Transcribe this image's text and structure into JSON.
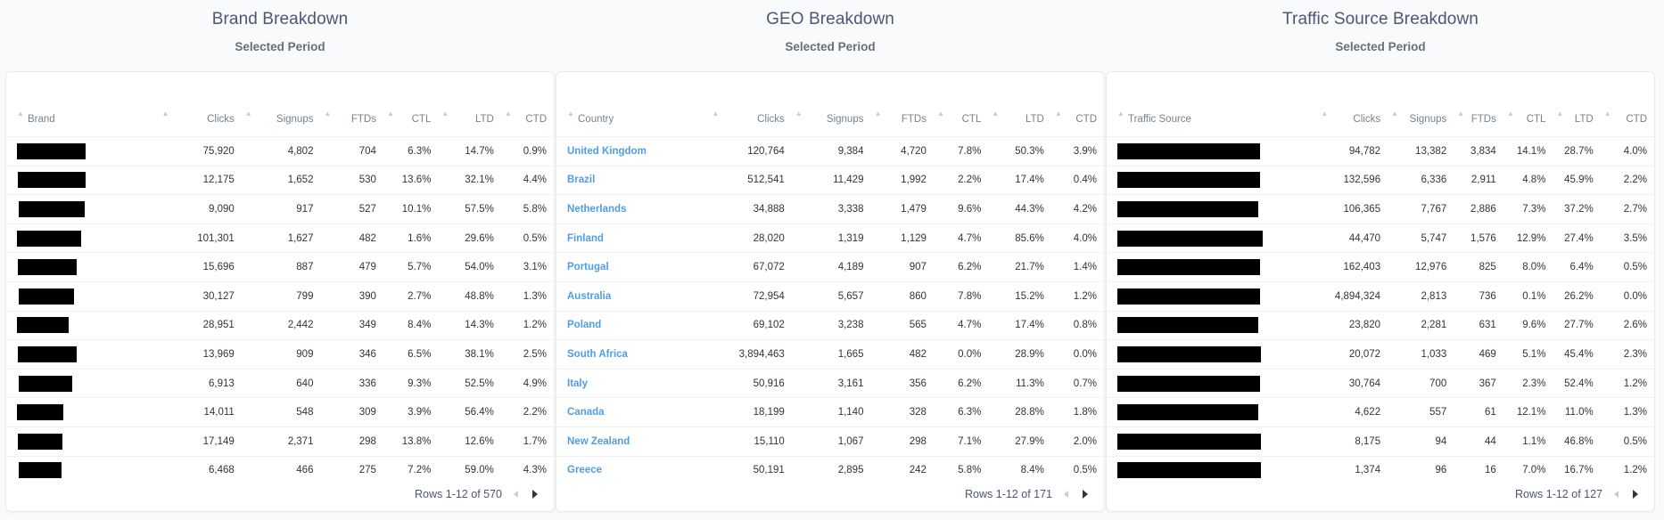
{
  "panels": [
    {
      "title": "Brand Breakdown",
      "subtitle": "Selected Period",
      "columns": [
        "Brand",
        "Clicks",
        "Signups",
        "FTDs",
        "CTL",
        "LTD",
        "CTD"
      ],
      "rows": [
        [
          "",
          "75,920",
          "4,802",
          "704",
          "6.3%",
          "14.7%",
          "0.9%"
        ],
        [
          "",
          "12,175",
          "1,652",
          "530",
          "13.6%",
          "32.1%",
          "4.4%"
        ],
        [
          "",
          "9,090",
          "917",
          "527",
          "10.1%",
          "57.5%",
          "5.8%"
        ],
        [
          "",
          "101,301",
          "1,627",
          "482",
          "1.6%",
          "29.6%",
          "0.5%"
        ],
        [
          "",
          "15,696",
          "887",
          "479",
          "5.7%",
          "54.0%",
          "3.1%"
        ],
        [
          "",
          "30,127",
          "799",
          "390",
          "2.7%",
          "48.8%",
          "1.3%"
        ],
        [
          "",
          "28,951",
          "2,442",
          "349",
          "8.4%",
          "14.3%",
          "1.2%"
        ],
        [
          "",
          "13,969",
          "909",
          "346",
          "6.5%",
          "38.1%",
          "2.5%"
        ],
        [
          "",
          "6,913",
          "640",
          "336",
          "9.3%",
          "52.5%",
          "4.9%"
        ],
        [
          "",
          "14,011",
          "548",
          "309",
          "3.9%",
          "56.4%",
          "2.2%"
        ],
        [
          "",
          "17,149",
          "2,371",
          "298",
          "13.8%",
          "12.6%",
          "1.7%"
        ],
        [
          "",
          "6,468",
          "466",
          "275",
          "7.2%",
          "59.0%",
          "4.3%"
        ]
      ],
      "pagination": "Rows 1-12 of 570"
    },
    {
      "title": "GEO Breakdown",
      "subtitle": "Selected Period",
      "columns": [
        "Country",
        "Clicks",
        "Signups",
        "FTDs",
        "CTL",
        "LTD",
        "CTD"
      ],
      "rows": [
        [
          "United Kingdom",
          "120,764",
          "9,384",
          "4,720",
          "7.8%",
          "50.3%",
          "3.9%"
        ],
        [
          "Brazil",
          "512,541",
          "11,429",
          "1,992",
          "2.2%",
          "17.4%",
          "0.4%"
        ],
        [
          "Netherlands",
          "34,888",
          "3,338",
          "1,479",
          "9.6%",
          "44.3%",
          "4.2%"
        ],
        [
          "Finland",
          "28,020",
          "1,319",
          "1,129",
          "4.7%",
          "85.6%",
          "4.0%"
        ],
        [
          "Portugal",
          "67,072",
          "4,189",
          "907",
          "6.2%",
          "21.7%",
          "1.4%"
        ],
        [
          "Australia",
          "72,954",
          "5,657",
          "860",
          "7.8%",
          "15.2%",
          "1.2%"
        ],
        [
          "Poland",
          "69,102",
          "3,238",
          "565",
          "4.7%",
          "17.4%",
          "0.8%"
        ],
        [
          "South Africa",
          "3,894,463",
          "1,665",
          "482",
          "0.0%",
          "28.9%",
          "0.0%"
        ],
        [
          "Italy",
          "50,916",
          "3,161",
          "356",
          "6.2%",
          "11.3%",
          "0.7%"
        ],
        [
          "Canada",
          "18,199",
          "1,140",
          "328",
          "6.3%",
          "28.8%",
          "1.8%"
        ],
        [
          "New Zealand",
          "15,110",
          "1,067",
          "298",
          "7.1%",
          "27.9%",
          "2.0%"
        ],
        [
          "Greece",
          "50,191",
          "2,895",
          "242",
          "5.8%",
          "8.4%",
          "0.5%"
        ]
      ],
      "pagination": "Rows 1-12 of 171"
    },
    {
      "title": "Traffic Source Breakdown",
      "subtitle": "Selected Period",
      "columns": [
        "Traffic Source",
        "Clicks",
        "Signups",
        "FTDs",
        "CTL",
        "LTD",
        "CTD"
      ],
      "rows": [
        [
          "",
          "94,782",
          "13,382",
          "3,834",
          "14.1%",
          "28.7%",
          "4.0%"
        ],
        [
          "",
          "132,596",
          "6,336",
          "2,911",
          "4.8%",
          "45.9%",
          "2.2%"
        ],
        [
          "",
          "106,365",
          "7,767",
          "2,886",
          "7.3%",
          "37.2%",
          "2.7%"
        ],
        [
          "",
          "44,470",
          "5,747",
          "1,576",
          "12.9%",
          "27.4%",
          "3.5%"
        ],
        [
          "",
          "162,403",
          "12,976",
          "825",
          "8.0%",
          "6.4%",
          "0.5%"
        ],
        [
          "",
          "4,894,324",
          "2,813",
          "736",
          "0.1%",
          "26.2%",
          "0.0%"
        ],
        [
          "",
          "23,820",
          "2,281",
          "631",
          "9.6%",
          "27.7%",
          "2.6%"
        ],
        [
          "",
          "20,072",
          "1,033",
          "469",
          "5.1%",
          "45.4%",
          "2.3%"
        ],
        [
          "",
          "30,764",
          "700",
          "367",
          "2.3%",
          "52.4%",
          "1.2%"
        ],
        [
          "",
          "4,622",
          "557",
          "61",
          "12.1%",
          "11.0%",
          "1.3%"
        ],
        [
          "",
          "8,175",
          "94",
          "44",
          "1.1%",
          "46.8%",
          "0.5%"
        ],
        [
          "",
          "1,374",
          "96",
          "16",
          "7.0%",
          "16.7%",
          "1.2%"
        ]
      ],
      "pagination": "Rows 1-12 of 127"
    }
  ],
  "icons": {
    "sort": "sort-arrow-icon",
    "prev": "chevron-left-icon",
    "next": "chevron-right-icon"
  }
}
